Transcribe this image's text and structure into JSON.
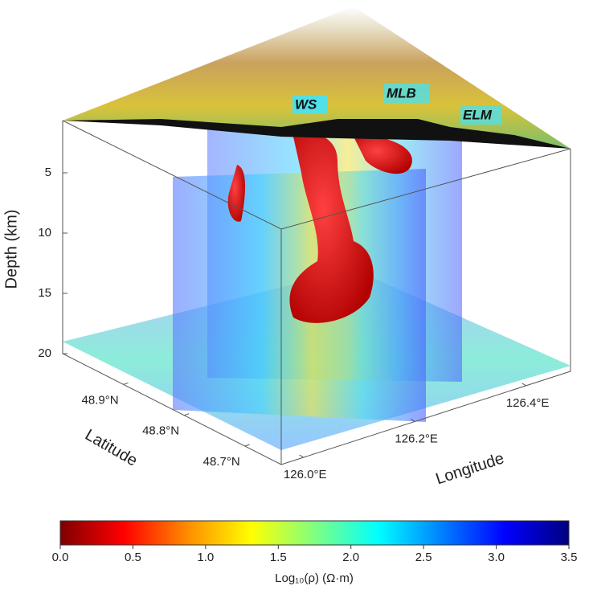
{
  "chart_data": {
    "type": "volume3d",
    "zlabel": "Depth (km)",
    "zlim": [
      0,
      20
    ],
    "zticks": [
      5,
      10,
      15,
      20
    ],
    "latlabel": "Latitude",
    "latlim": [
      49.0,
      48.64
    ],
    "latticks": [
      {
        "value": 48.9,
        "label": "48.9°N"
      },
      {
        "value": 48.8,
        "label": "48.8°N"
      },
      {
        "value": 48.7,
        "label": "48.7°N"
      }
    ],
    "lonlabel": "Longitude",
    "lonlim": [
      125.96,
      126.48
    ],
    "lonticks": [
      {
        "value": 126.0,
        "label": "126.0°E"
      },
      {
        "value": 126.2,
        "label": "126.2°E"
      },
      {
        "value": 126.4,
        "label": "126.4°E"
      }
    ],
    "annotations": [
      "WS",
      "MLB",
      "ELM"
    ],
    "colorbar": {
      "label": "Log₁₀(ρ) (Ω·m)",
      "lim": [
        0,
        3.5
      ],
      "ticks": [
        {
          "value": 0,
          "label": "0.0"
        },
        0.5,
        {
          "value": 1,
          "label": "1.0"
        },
        1.5,
        {
          "value": 2,
          "label": "2.0"
        },
        2.5,
        {
          "value": 3,
          "label": "3.0"
        },
        3.5
      ],
      "colors": [
        "#7f0000",
        "#ff0000",
        "#ff8c00",
        "#ffff00",
        "#80ff80",
        "#00ffff",
        "#0080ff",
        "#0000ff",
        "#00007f"
      ]
    }
  }
}
